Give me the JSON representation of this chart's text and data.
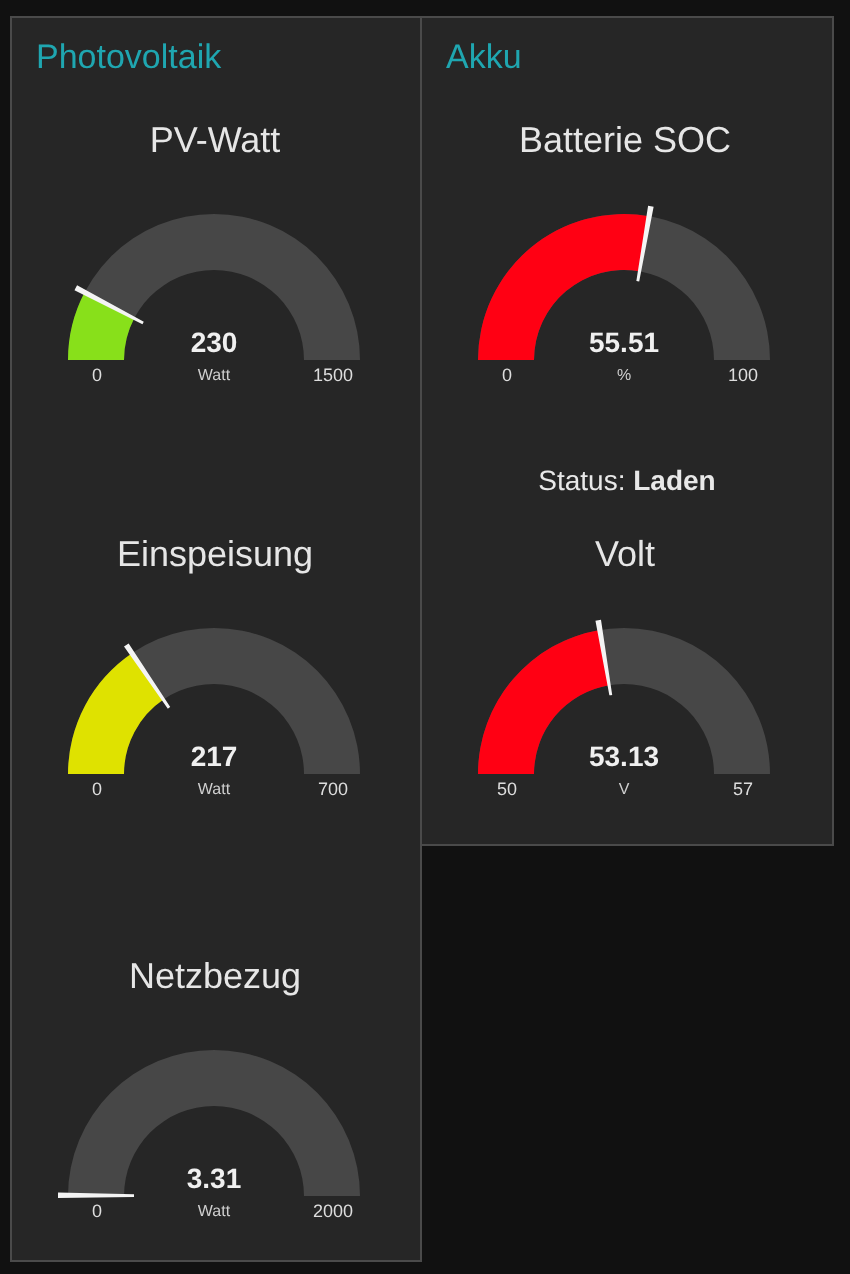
{
  "chart_data": [
    {
      "type": "other",
      "title": "Photovoltaik"
    },
    {
      "type": "other",
      "title": "PV-Watt",
      "values": [
        230
      ],
      "annotations": [
        "0",
        "1500"
      ],
      "data_labels": true,
      "ylabel": "Watt",
      "colors": [
        "#88e01a"
      ]
    },
    {
      "type": "other",
      "title": "Einspeisung",
      "values": [
        217
      ],
      "annotations": [
        "0",
        "700"
      ],
      "data_labels": true,
      "ylabel": "Watt",
      "colors": [
        "#dfe200"
      ]
    },
    {
      "type": "other",
      "title": "Netzbezug",
      "values": [
        3.31
      ],
      "annotations": [
        "0",
        "2000"
      ],
      "data_labels": true,
      "ylabel": "Watt",
      "colors": [
        "#88e01a"
      ]
    },
    {
      "type": "other",
      "title": "Akku"
    },
    {
      "type": "other",
      "title": "Batterie SOC",
      "values": [
        55.51
      ],
      "annotations": [
        "0",
        "100"
      ],
      "data_labels": true,
      "ylabel": "%",
      "colors": [
        "#ff0013"
      ]
    },
    {
      "type": "other",
      "annotations": [
        "Status: Laden"
      ]
    },
    {
      "type": "other",
      "title": "Volt",
      "values": [
        53.13
      ],
      "annotations": [
        "50",
        "57"
      ],
      "data_labels": true,
      "ylabel": "V",
      "colors": [
        "#ff0013"
      ]
    }
  ]
}
